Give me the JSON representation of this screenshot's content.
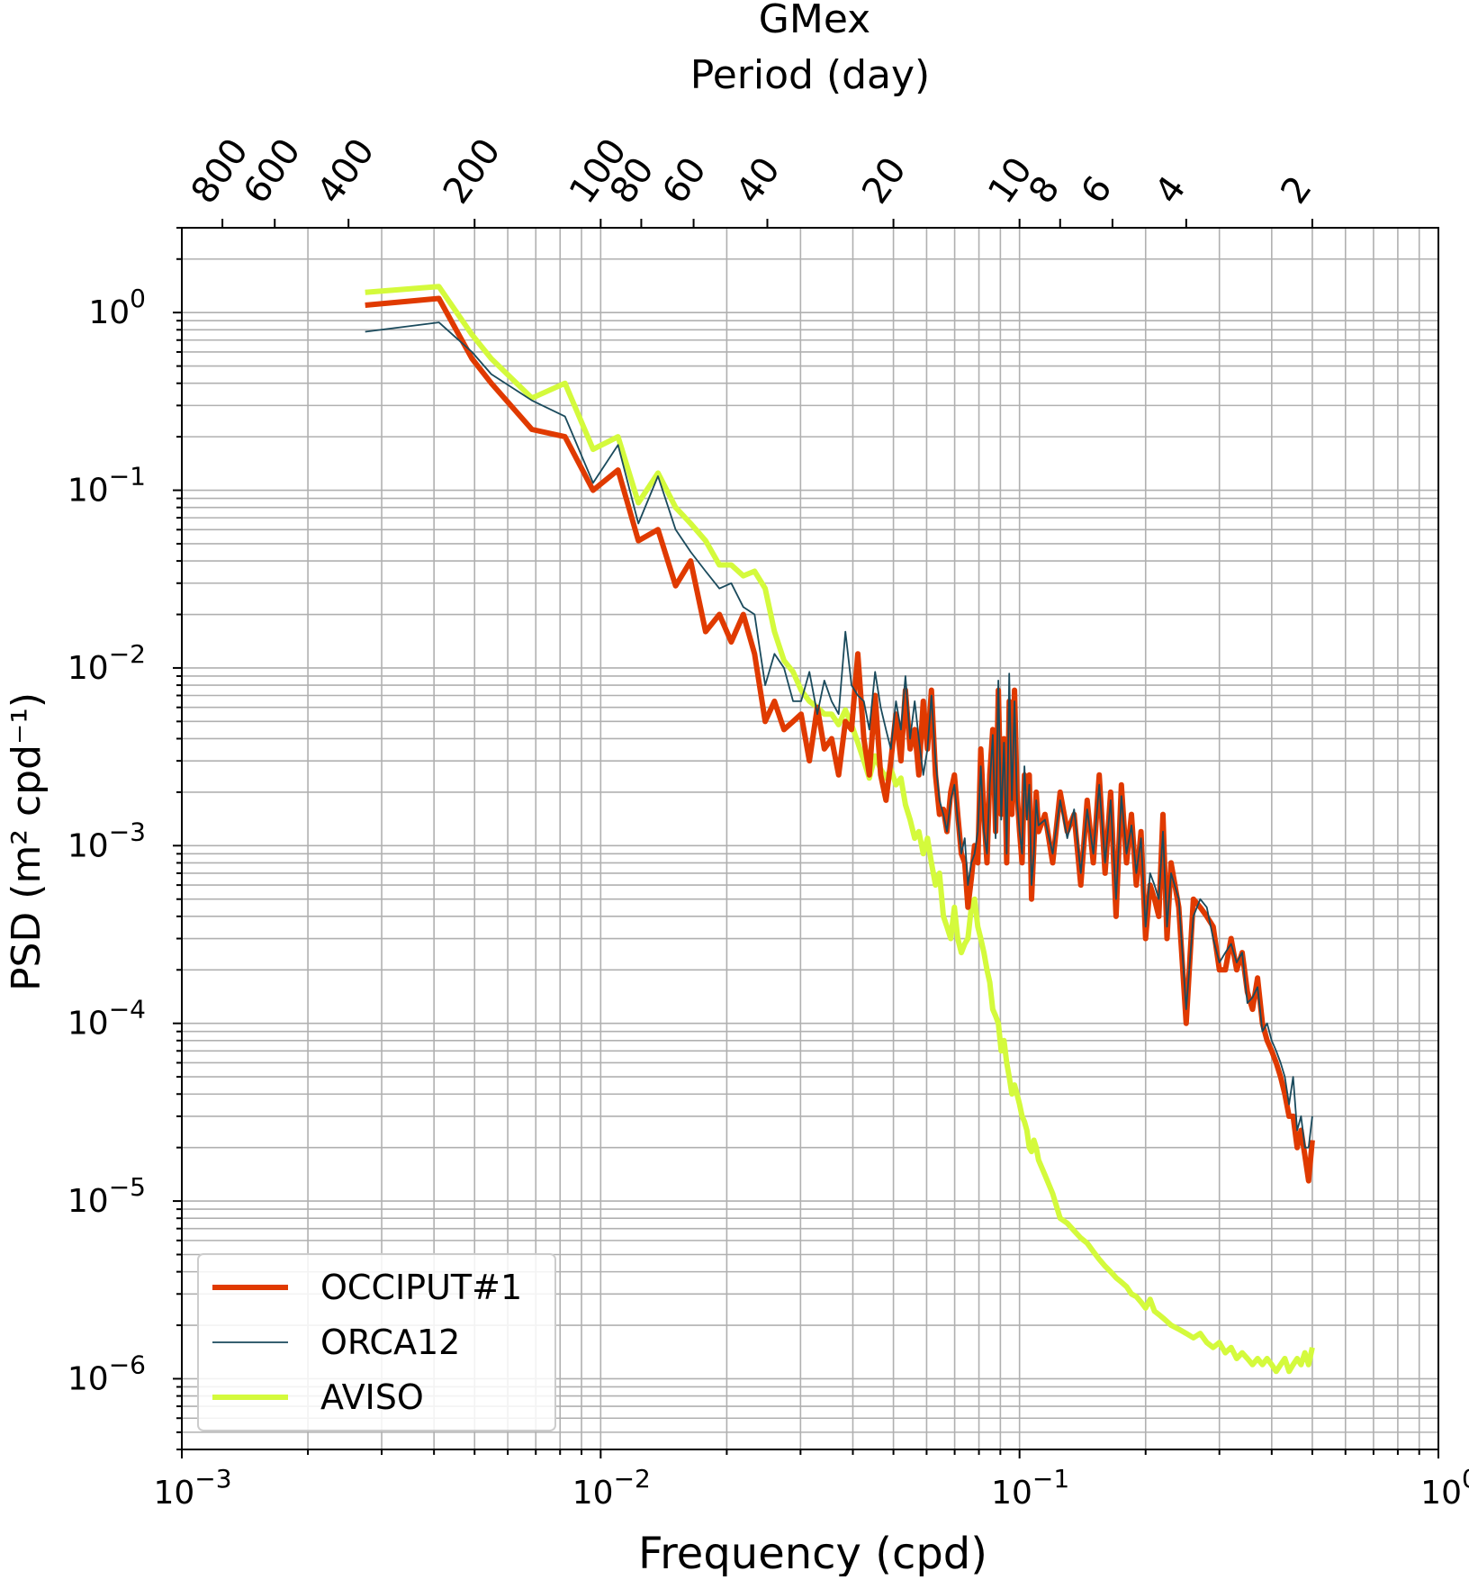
{
  "chart_data": {
    "type": "line",
    "title": "GMex",
    "top_axis_label": "Period (day)",
    "xlabel": "Frequency (cpd)",
    "ylabel": "PSD (m² cpd⁻¹)",
    "xscale": "log",
    "yscale": "log",
    "xlim": [
      0.001,
      1
    ],
    "ylim": [
      4e-07,
      3
    ],
    "grid": true,
    "legend_position": "lower-left",
    "x_ticks": [
      {
        "value": 0.001,
        "base": "10",
        "exp": "−3"
      },
      {
        "value": 0.01,
        "base": "10",
        "exp": "−2"
      },
      {
        "value": 0.1,
        "base": "10",
        "exp": "−1"
      },
      {
        "value": 1,
        "base": "10",
        "exp": "0"
      }
    ],
    "y_ticks": [
      {
        "value": 1,
        "base": "10",
        "exp": "0"
      },
      {
        "value": 0.1,
        "base": "10",
        "exp": "−1"
      },
      {
        "value": 0.01,
        "base": "10",
        "exp": "−2"
      },
      {
        "value": 0.001,
        "base": "10",
        "exp": "−3"
      },
      {
        "value": 0.0001,
        "base": "10",
        "exp": "−4"
      },
      {
        "value": 1e-05,
        "base": "10",
        "exp": "−5"
      },
      {
        "value": 1e-06,
        "base": "10",
        "exp": "−6"
      }
    ],
    "period_ticks": [
      {
        "period": 800,
        "label": "800"
      },
      {
        "period": 600,
        "label": "600"
      },
      {
        "period": 400,
        "label": "400"
      },
      {
        "period": 200,
        "label": "200"
      },
      {
        "period": 100,
        "label": "100"
      },
      {
        "period": 80,
        "label": "80"
      },
      {
        "period": 60,
        "label": "60"
      },
      {
        "period": 40,
        "label": "40"
      },
      {
        "period": 20,
        "label": "20"
      },
      {
        "period": 10,
        "label": "10"
      },
      {
        "period": 8,
        "label": "8"
      },
      {
        "period": 6,
        "label": "6"
      },
      {
        "period": 4,
        "label": "4"
      },
      {
        "period": 2,
        "label": "2"
      }
    ],
    "series": [
      {
        "name": "OCCIPUT#1",
        "color": "#e03a00",
        "line_width": "thick",
        "x": [
          0.00274,
          0.00411,
          0.00493,
          0.00548,
          0.00685,
          0.00822,
          0.00959,
          0.011,
          0.0123,
          0.0137,
          0.0151,
          0.0164,
          0.0178,
          0.0192,
          0.0205,
          0.0219,
          0.0233,
          0.0247,
          0.026,
          0.0274,
          0.0288,
          0.0301,
          0.0315,
          0.0329,
          0.0342,
          0.0356,
          0.037,
          0.0384,
          0.0397,
          0.0411,
          0.0425,
          0.0438,
          0.0452,
          0.0466,
          0.048,
          0.0493,
          0.0507,
          0.0521,
          0.0534,
          0.0548,
          0.0562,
          0.0575,
          0.0589,
          0.0603,
          0.0616,
          0.063,
          0.0644,
          0.0658,
          0.0671,
          0.0685,
          0.0699,
          0.0712,
          0.0726,
          0.074,
          0.0753,
          0.0767,
          0.0781,
          0.0795,
          0.0808,
          0.0822,
          0.0836,
          0.0849,
          0.0863,
          0.0877,
          0.089,
          0.0904,
          0.0918,
          0.0932,
          0.0945,
          0.0959,
          0.0973,
          0.0986,
          0.1,
          0.1014,
          0.1027,
          0.1041,
          0.1055,
          0.1068,
          0.1082,
          0.1096,
          0.111,
          0.115,
          0.12,
          0.125,
          0.13,
          0.135,
          0.14,
          0.145,
          0.15,
          0.155,
          0.16,
          0.165,
          0.17,
          0.175,
          0.18,
          0.185,
          0.19,
          0.195,
          0.2,
          0.205,
          0.21,
          0.215,
          0.22,
          0.225,
          0.23,
          0.24,
          0.25,
          0.26,
          0.27,
          0.28,
          0.29,
          0.3,
          0.31,
          0.32,
          0.33,
          0.34,
          0.35,
          0.36,
          0.37,
          0.38,
          0.39,
          0.4,
          0.41,
          0.42,
          0.43,
          0.44,
          0.45,
          0.46,
          0.47,
          0.48,
          0.49,
          0.5
        ],
        "y": [
          1.1,
          1.2,
          0.55,
          0.4,
          0.22,
          0.2,
          0.1,
          0.13,
          0.052,
          0.06,
          0.029,
          0.04,
          0.016,
          0.02,
          0.014,
          0.02,
          0.012,
          0.005,
          0.0065,
          0.0045,
          0.005,
          0.0055,
          0.003,
          0.006,
          0.0035,
          0.004,
          0.0025,
          0.005,
          0.0045,
          0.012,
          0.004,
          0.0025,
          0.007,
          0.0025,
          0.0018,
          0.003,
          0.0055,
          0.003,
          0.0075,
          0.0035,
          0.0045,
          0.0025,
          0.0065,
          0.0035,
          0.0075,
          0.0025,
          0.0015,
          0.0016,
          0.0012,
          0.002,
          0.0025,
          0.0015,
          0.0009,
          0.0008,
          0.00045,
          0.00065,
          0.001,
          0.0008,
          0.0035,
          0.0015,
          0.0008,
          0.0025,
          0.0045,
          0.0012,
          0.0075,
          0.0015,
          0.004,
          0.0008,
          0.0065,
          0.0015,
          0.0075,
          0.002,
          0.0012,
          0.0008,
          0.0025,
          0.0015,
          0.0025,
          0.0005,
          0.001,
          0.002,
          0.0012,
          0.0015,
          0.0008,
          0.002,
          0.0012,
          0.0015,
          0.0006,
          0.0018,
          0.0008,
          0.0025,
          0.0007,
          0.002,
          0.0004,
          0.0022,
          0.0008,
          0.0015,
          0.0006,
          0.0012,
          0.0003,
          0.0006,
          0.0005,
          0.0004,
          0.0015,
          0.0003,
          0.0008,
          0.00045,
          0.0001,
          0.0005,
          0.00045,
          0.0004,
          0.00035,
          0.0002,
          0.0002,
          0.0003,
          0.0002,
          0.00025,
          0.00015,
          0.00012,
          0.00018,
          0.0001,
          8e-05,
          7e-05,
          6e-05,
          5e-05,
          4e-05,
          3e-05,
          3e-05,
          2e-05,
          2.5e-05,
          1.8e-05,
          1.3e-05,
          2.2e-05
        ]
      },
      {
        "name": "ORCA12",
        "color": "#1a4a5c",
        "line_width": "thin",
        "x": [
          0.00274,
          0.00411,
          0.00493,
          0.00548,
          0.00685,
          0.00822,
          0.00959,
          0.011,
          0.0123,
          0.0137,
          0.0151,
          0.0164,
          0.0178,
          0.0192,
          0.0205,
          0.0219,
          0.0233,
          0.0247,
          0.026,
          0.0274,
          0.0288,
          0.0301,
          0.0315,
          0.0329,
          0.0342,
          0.0356,
          0.037,
          0.0384,
          0.0397,
          0.0411,
          0.0425,
          0.0438,
          0.0452,
          0.0466,
          0.048,
          0.0493,
          0.0507,
          0.0521,
          0.0534,
          0.0548,
          0.0562,
          0.0575,
          0.0589,
          0.0603,
          0.0616,
          0.063,
          0.0644,
          0.0658,
          0.0671,
          0.0685,
          0.0699,
          0.0712,
          0.0726,
          0.074,
          0.0753,
          0.0767,
          0.0781,
          0.0795,
          0.0808,
          0.0822,
          0.0836,
          0.0849,
          0.0863,
          0.0877,
          0.089,
          0.0904,
          0.0918,
          0.0932,
          0.0945,
          0.0959,
          0.0973,
          0.0986,
          0.1,
          0.1014,
          0.1027,
          0.1041,
          0.1055,
          0.1068,
          0.1082,
          0.1096,
          0.111,
          0.115,
          0.12,
          0.125,
          0.13,
          0.135,
          0.14,
          0.145,
          0.15,
          0.155,
          0.16,
          0.165,
          0.17,
          0.175,
          0.18,
          0.185,
          0.19,
          0.195,
          0.2,
          0.205,
          0.21,
          0.215,
          0.22,
          0.225,
          0.23,
          0.24,
          0.25,
          0.26,
          0.27,
          0.28,
          0.29,
          0.3,
          0.31,
          0.32,
          0.33,
          0.34,
          0.35,
          0.36,
          0.37,
          0.38,
          0.39,
          0.4,
          0.41,
          0.42,
          0.43,
          0.44,
          0.45,
          0.46,
          0.47,
          0.48,
          0.49,
          0.5
        ],
        "y": [
          0.78,
          0.88,
          0.6,
          0.45,
          0.32,
          0.26,
          0.11,
          0.18,
          0.065,
          0.12,
          0.06,
          0.045,
          0.035,
          0.028,
          0.03,
          0.022,
          0.02,
          0.008,
          0.012,
          0.01,
          0.0065,
          0.0065,
          0.0095,
          0.0055,
          0.0085,
          0.0065,
          0.0055,
          0.016,
          0.008,
          0.007,
          0.0065,
          0.0045,
          0.0095,
          0.006,
          0.0045,
          0.0035,
          0.0065,
          0.0045,
          0.009,
          0.004,
          0.0065,
          0.004,
          0.0025,
          0.0035,
          0.007,
          0.003,
          0.0018,
          0.0015,
          0.0012,
          0.0018,
          0.0022,
          0.0014,
          0.0009,
          0.0011,
          0.0006,
          0.0008,
          0.0009,
          0.0012,
          0.0028,
          0.0012,
          0.0009,
          0.0022,
          0.0042,
          0.0011,
          0.0085,
          0.0014,
          0.0038,
          0.0009,
          0.0093,
          0.0018,
          0.0065,
          0.0018,
          0.0012,
          0.0009,
          0.0028,
          0.0014,
          0.0022,
          0.0006,
          0.0009,
          0.0018,
          0.0013,
          0.0014,
          0.0009,
          0.0018,
          0.0011,
          0.0016,
          0.0007,
          0.0016,
          0.0009,
          0.0022,
          0.0008,
          0.0018,
          0.0005,
          0.0019,
          0.0009,
          0.0013,
          0.0007,
          0.0011,
          0.00035,
          0.0007,
          0.0006,
          0.0005,
          0.0012,
          0.00035,
          0.0007,
          0.0005,
          0.00012,
          0.0004,
          0.0005,
          0.00045,
          0.0003,
          0.00022,
          0.00025,
          0.00028,
          0.00022,
          0.00025,
          0.00013,
          0.00014,
          0.00016,
          9e-05,
          0.0001,
          8e-05,
          7e-05,
          6e-05,
          5e-05,
          3.5e-05,
          5e-05,
          2.5e-05,
          3e-05,
          2e-05,
          2e-05,
          3e-05
        ]
      },
      {
        "name": "AVISO",
        "color": "#d4fa3c",
        "line_width": "thick",
        "x": [
          0.00274,
          0.00411,
          0.00493,
          0.00548,
          0.00685,
          0.00822,
          0.00959,
          0.011,
          0.0123,
          0.0137,
          0.0151,
          0.0164,
          0.0178,
          0.0192,
          0.0205,
          0.0219,
          0.0233,
          0.0247,
          0.026,
          0.0274,
          0.0288,
          0.0301,
          0.0315,
          0.0329,
          0.0342,
          0.0356,
          0.037,
          0.0384,
          0.0397,
          0.0411,
          0.0425,
          0.0438,
          0.0452,
          0.0466,
          0.048,
          0.0493,
          0.0507,
          0.0521,
          0.0534,
          0.0548,
          0.0562,
          0.0575,
          0.0589,
          0.0603,
          0.0616,
          0.063,
          0.0644,
          0.0658,
          0.0671,
          0.0685,
          0.0699,
          0.0712,
          0.0726,
          0.074,
          0.0753,
          0.0767,
          0.0781,
          0.0795,
          0.0808,
          0.0822,
          0.0836,
          0.0849,
          0.0863,
          0.0877,
          0.089,
          0.0904,
          0.0918,
          0.0932,
          0.0945,
          0.0959,
          0.0973,
          0.0986,
          0.1,
          0.1014,
          0.1027,
          0.1041,
          0.1055,
          0.1068,
          0.1082,
          0.1096,
          0.111,
          0.115,
          0.12,
          0.125,
          0.13,
          0.135,
          0.14,
          0.145,
          0.15,
          0.155,
          0.16,
          0.165,
          0.17,
          0.175,
          0.18,
          0.185,
          0.19,
          0.195,
          0.2,
          0.205,
          0.21,
          0.215,
          0.22,
          0.225,
          0.23,
          0.24,
          0.25,
          0.26,
          0.27,
          0.28,
          0.29,
          0.3,
          0.31,
          0.32,
          0.33,
          0.34,
          0.35,
          0.36,
          0.37,
          0.38,
          0.39,
          0.4,
          0.41,
          0.42,
          0.43,
          0.44,
          0.45,
          0.46,
          0.47,
          0.48,
          0.49,
          0.5
        ],
        "y": [
          1.3,
          1.4,
          0.75,
          0.55,
          0.33,
          0.4,
          0.17,
          0.2,
          0.085,
          0.125,
          0.08,
          0.065,
          0.052,
          0.038,
          0.038,
          0.033,
          0.035,
          0.028,
          0.016,
          0.011,
          0.0095,
          0.0075,
          0.0065,
          0.006,
          0.0055,
          0.0055,
          0.0048,
          0.0058,
          0.0048,
          0.0038,
          0.003,
          0.0024,
          0.0032,
          0.0027,
          0.0024,
          0.0027,
          0.0022,
          0.0024,
          0.0017,
          0.0014,
          0.0011,
          0.0012,
          0.0009,
          0.0011,
          0.0008,
          0.0006,
          0.0007,
          0.0004,
          0.00035,
          0.0003,
          0.00045,
          0.0003,
          0.00025,
          0.00028,
          0.0003,
          0.00045,
          0.0005,
          0.00035,
          0.0003,
          0.00025,
          0.0002,
          0.00017,
          0.00012,
          0.00011,
          0.0001,
          7e-05,
          8e-05,
          6e-05,
          5e-05,
          4e-05,
          4.5e-05,
          4e-05,
          3.5e-05,
          3e-05,
          2.8e-05,
          2.5e-05,
          2e-05,
          1.9e-05,
          2.2e-05,
          2e-05,
          1.7e-05,
          1.4e-05,
          1.1e-05,
          8e-06,
          7.5e-06,
          6.8e-06,
          6.2e-06,
          5.8e-06,
          5.2e-06,
          4.7e-06,
          4.3e-06,
          4e-06,
          3.7e-06,
          3.5e-06,
          3.3e-06,
          3e-06,
          2.9e-06,
          2.7e-06,
          2.5e-06,
          2.8e-06,
          2.4e-06,
          2.3e-06,
          2.2e-06,
          2.1e-06,
          2e-06,
          1.9e-06,
          1.8e-06,
          1.7e-06,
          1.8e-06,
          1.6e-06,
          1.5e-06,
          1.6e-06,
          1.4e-06,
          1.5e-06,
          1.3e-06,
          1.4e-06,
          1.3e-06,
          1.2e-06,
          1.3e-06,
          1.2e-06,
          1.3e-06,
          1.2e-06,
          1.1e-06,
          1.2e-06,
          1.3e-06,
          1.1e-06,
          1.2e-06,
          1.3e-06,
          1.2e-06,
          1.4e-06,
          1.2e-06,
          1.5e-06
        ]
      }
    ]
  }
}
